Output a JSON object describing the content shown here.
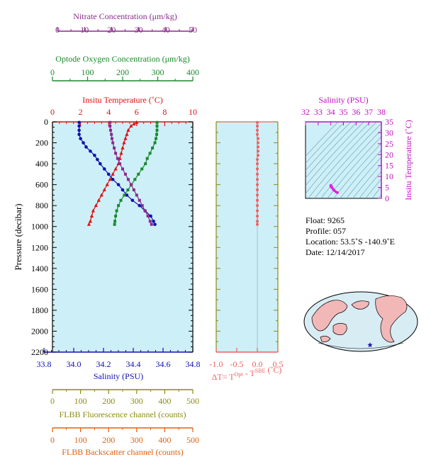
{
  "colors": {
    "nitrate": "#8b2a8b",
    "oxygen": "#1a8a2a",
    "temperature": "#e01010",
    "salinity": "#1010b0",
    "fluorescence": "#8b8b10",
    "backscatter": "#e06010",
    "delta": "#f06060",
    "panel_bg": "#cdeff8",
    "inset_salinity": "#c010c0",
    "inset_points": "#e020e0",
    "inset_grid": "#6a9aa6"
  },
  "axes": {
    "nitrate": {
      "label": "Nitrate Concentration (μm/kg)",
      "ticks": [
        "0",
        "10",
        "20",
        "30",
        "40",
        "50"
      ]
    },
    "oxygen": {
      "label": "Optode Oxygen Concentration (μm/kg)",
      "ticks": [
        "0",
        "100",
        "200",
        "300",
        "400"
      ]
    },
    "temperature": {
      "label": "Insitu Temperature (˚C)",
      "ticks": [
        "0",
        "2",
        "4",
        "6",
        "8",
        "10"
      ]
    },
    "pressure": {
      "label": "Pressure (decibar)",
      "ticks": [
        "0",
        "200",
        "400",
        "600",
        "800",
        "1000",
        "1200",
        "1400",
        "1600",
        "1800",
        "2000",
        "2200"
      ]
    },
    "salinity": {
      "label": "Salinity (PSU)",
      "ticks": [
        "33.8",
        "34.0",
        "34.2",
        "34.4",
        "34.6",
        "34.8"
      ]
    },
    "delta": {
      "label": "ΔT= T",
      "label_sup1": "Opt",
      "label_mid": " - T",
      "label_sup2": "SBE",
      "label_end": " (˚C)",
      "ticks": [
        "-1.0",
        "-0.5",
        "0.0",
        "0.5"
      ]
    },
    "fluorescence": {
      "label": "FLBB Fluorescence channel (counts)",
      "ticks": [
        "0",
        "100",
        "200",
        "300",
        "400",
        "500"
      ]
    },
    "backscatter": {
      "label": "FLBB Backscatter channel (counts)",
      "ticks": [
        "0",
        "100",
        "200",
        "300",
        "400",
        "500"
      ]
    },
    "inset_salinity": {
      "label": "Salinity (PSU)",
      "ticks": [
        "32",
        "33",
        "34",
        "35",
        "36",
        "37",
        "38"
      ]
    },
    "inset_temperature": {
      "label": "Insitu Temperature (˚C)",
      "ticks": [
        "0",
        "5",
        "10",
        "15",
        "20",
        "25",
        "30",
        "35"
      ]
    }
  },
  "info": {
    "float": "Float:  9265",
    "profile": "Profile:  057",
    "location": "Location:  53.5˚S  -140.9˚E",
    "date": "Date:  12/14/2017"
  },
  "chart_data": [
    {
      "type": "line",
      "title": "",
      "ylabel": "Pressure (decibar)",
      "ylim": [
        2200,
        0
      ],
      "series": [
        {
          "name": "Insitu Temperature (˚C)",
          "xlim": [
            0,
            10
          ],
          "points": [
            [
              6.0,
              5
            ],
            [
              5.8,
              20
            ],
            [
              5.6,
              40
            ],
            [
              5.4,
              80
            ],
            [
              5.3,
              120
            ],
            [
              5.2,
              160
            ],
            [
              5.1,
              200
            ],
            [
              5.0,
              250
            ],
            [
              4.9,
              300
            ],
            [
              4.8,
              350
            ],
            [
              4.7,
              400
            ],
            [
              4.5,
              450
            ],
            [
              4.3,
              500
            ],
            [
              4.1,
              550
            ],
            [
              3.9,
              600
            ],
            [
              3.7,
              650
            ],
            [
              3.5,
              700
            ],
            [
              3.3,
              750
            ],
            [
              3.1,
              800
            ],
            [
              2.9,
              850
            ],
            [
              2.8,
              900
            ],
            [
              2.7,
              950
            ],
            [
              2.6,
              980
            ]
          ]
        },
        {
          "name": "Salinity (PSU)",
          "xlim": [
            33.8,
            34.8
          ],
          "points": [
            [
              33.99,
              5
            ],
            [
              33.99,
              40
            ],
            [
              33.99,
              80
            ],
            [
              33.99,
              120
            ],
            [
              34.0,
              160
            ],
            [
              34.02,
              200
            ],
            [
              34.04,
              240
            ],
            [
              34.07,
              280
            ],
            [
              34.1,
              320
            ],
            [
              34.12,
              360
            ],
            [
              34.14,
              400
            ],
            [
              34.17,
              450
            ],
            [
              34.2,
              500
            ],
            [
              34.23,
              550
            ],
            [
              34.27,
              600
            ],
            [
              34.3,
              650
            ],
            [
              34.33,
              700
            ],
            [
              34.37,
              750
            ],
            [
              34.42,
              800
            ],
            [
              34.46,
              850
            ],
            [
              34.5,
              900
            ],
            [
              34.52,
              950
            ],
            [
              34.53,
              980
            ]
          ]
        },
        {
          "name": "Optode Oxygen Concentration (μm/kg)",
          "xlim": [
            0,
            400
          ],
          "points": [
            [
              298,
              5
            ],
            [
              298,
              40
            ],
            [
              298,
              80
            ],
            [
              297,
              120
            ],
            [
              295,
              160
            ],
            [
              292,
              200
            ],
            [
              285,
              250
            ],
            [
              278,
              300
            ],
            [
              270,
              350
            ],
            [
              265,
              400
            ],
            [
              255,
              450
            ],
            [
              245,
              500
            ],
            [
              235,
              550
            ],
            [
              225,
              600
            ],
            [
              215,
              650
            ],
            [
              205,
              700
            ],
            [
              195,
              750
            ],
            [
              188,
              800
            ],
            [
              183,
              850
            ],
            [
              180,
              900
            ],
            [
              178,
              950
            ],
            [
              177,
              980
            ]
          ]
        },
        {
          "name": "Nitrate Concentration (μm/kg)",
          "xlim": [
            0,
            50
          ],
          "points": [
            [
              20.5,
              5
            ],
            [
              20.5,
              40
            ],
            [
              20.7,
              80
            ],
            [
              21.0,
              120
            ],
            [
              21.2,
              160
            ],
            [
              21.5,
              200
            ],
            [
              22.0,
              250
            ],
            [
              22.5,
              300
            ],
            [
              23.2,
              350
            ],
            [
              24.0,
              400
            ],
            [
              25.0,
              450
            ],
            [
              26.0,
              500
            ],
            [
              27.0,
              550
            ],
            [
              28.0,
              600
            ],
            [
              29.0,
              650
            ],
            [
              30.0,
              700
            ],
            [
              31.0,
              750
            ],
            [
              32.0,
              800
            ],
            [
              33.0,
              850
            ],
            [
              34.0,
              900
            ],
            [
              34.8,
              950
            ],
            [
              35.3,
              980
            ]
          ]
        }
      ]
    },
    {
      "type": "line",
      "title": "",
      "xlabel": "ΔT= TOpt - TSBE (˚C)",
      "xlim": [
        -1.0,
        0.5
      ],
      "ylim": [
        2200,
        0
      ],
      "series": [
        {
          "name": "",
          "points": [
            [
              0.0,
              5
            ],
            [
              0.0,
              40
            ],
            [
              0.0,
              80
            ],
            [
              0.0,
              120
            ],
            [
              0.0,
              160
            ],
            [
              0.0,
              200
            ],
            [
              0.0,
              240
            ],
            [
              0.0,
              280
            ],
            [
              0.0,
              320
            ],
            [
              0.0,
              360
            ],
            [
              0.0,
              400
            ],
            [
              0.0,
              450
            ],
            [
              0.0,
              500
            ],
            [
              0.0,
              550
            ],
            [
              0.0,
              600
            ],
            [
              0.0,
              650
            ],
            [
              0.0,
              700
            ],
            [
              0.0,
              750
            ],
            [
              0.0,
              800
            ],
            [
              0.0,
              850
            ],
            [
              0.0,
              900
            ],
            [
              0.0,
              950
            ],
            [
              0.0,
              980
            ]
          ]
        }
      ]
    },
    {
      "type": "scatter",
      "title": "",
      "xlabel": "Salinity (PSU)",
      "ylabel": "Insitu Temperature (˚C)",
      "xlim": [
        32,
        38
      ],
      "ylim": [
        0,
        35
      ],
      "series": [
        {
          "name": "",
          "points": [
            [
              34.0,
              6.0
            ],
            [
              34.05,
              5.5
            ],
            [
              34.1,
              5.0
            ],
            [
              34.15,
              4.5
            ],
            [
              34.2,
              4.0
            ],
            [
              34.3,
              3.5
            ],
            [
              34.4,
              3.0
            ],
            [
              34.5,
              2.7
            ],
            [
              34.53,
              2.6
            ],
            [
              33.99,
              5.8
            ],
            [
              34.02,
              5.2
            ],
            [
              34.25,
              3.8
            ]
          ]
        }
      ]
    }
  ]
}
